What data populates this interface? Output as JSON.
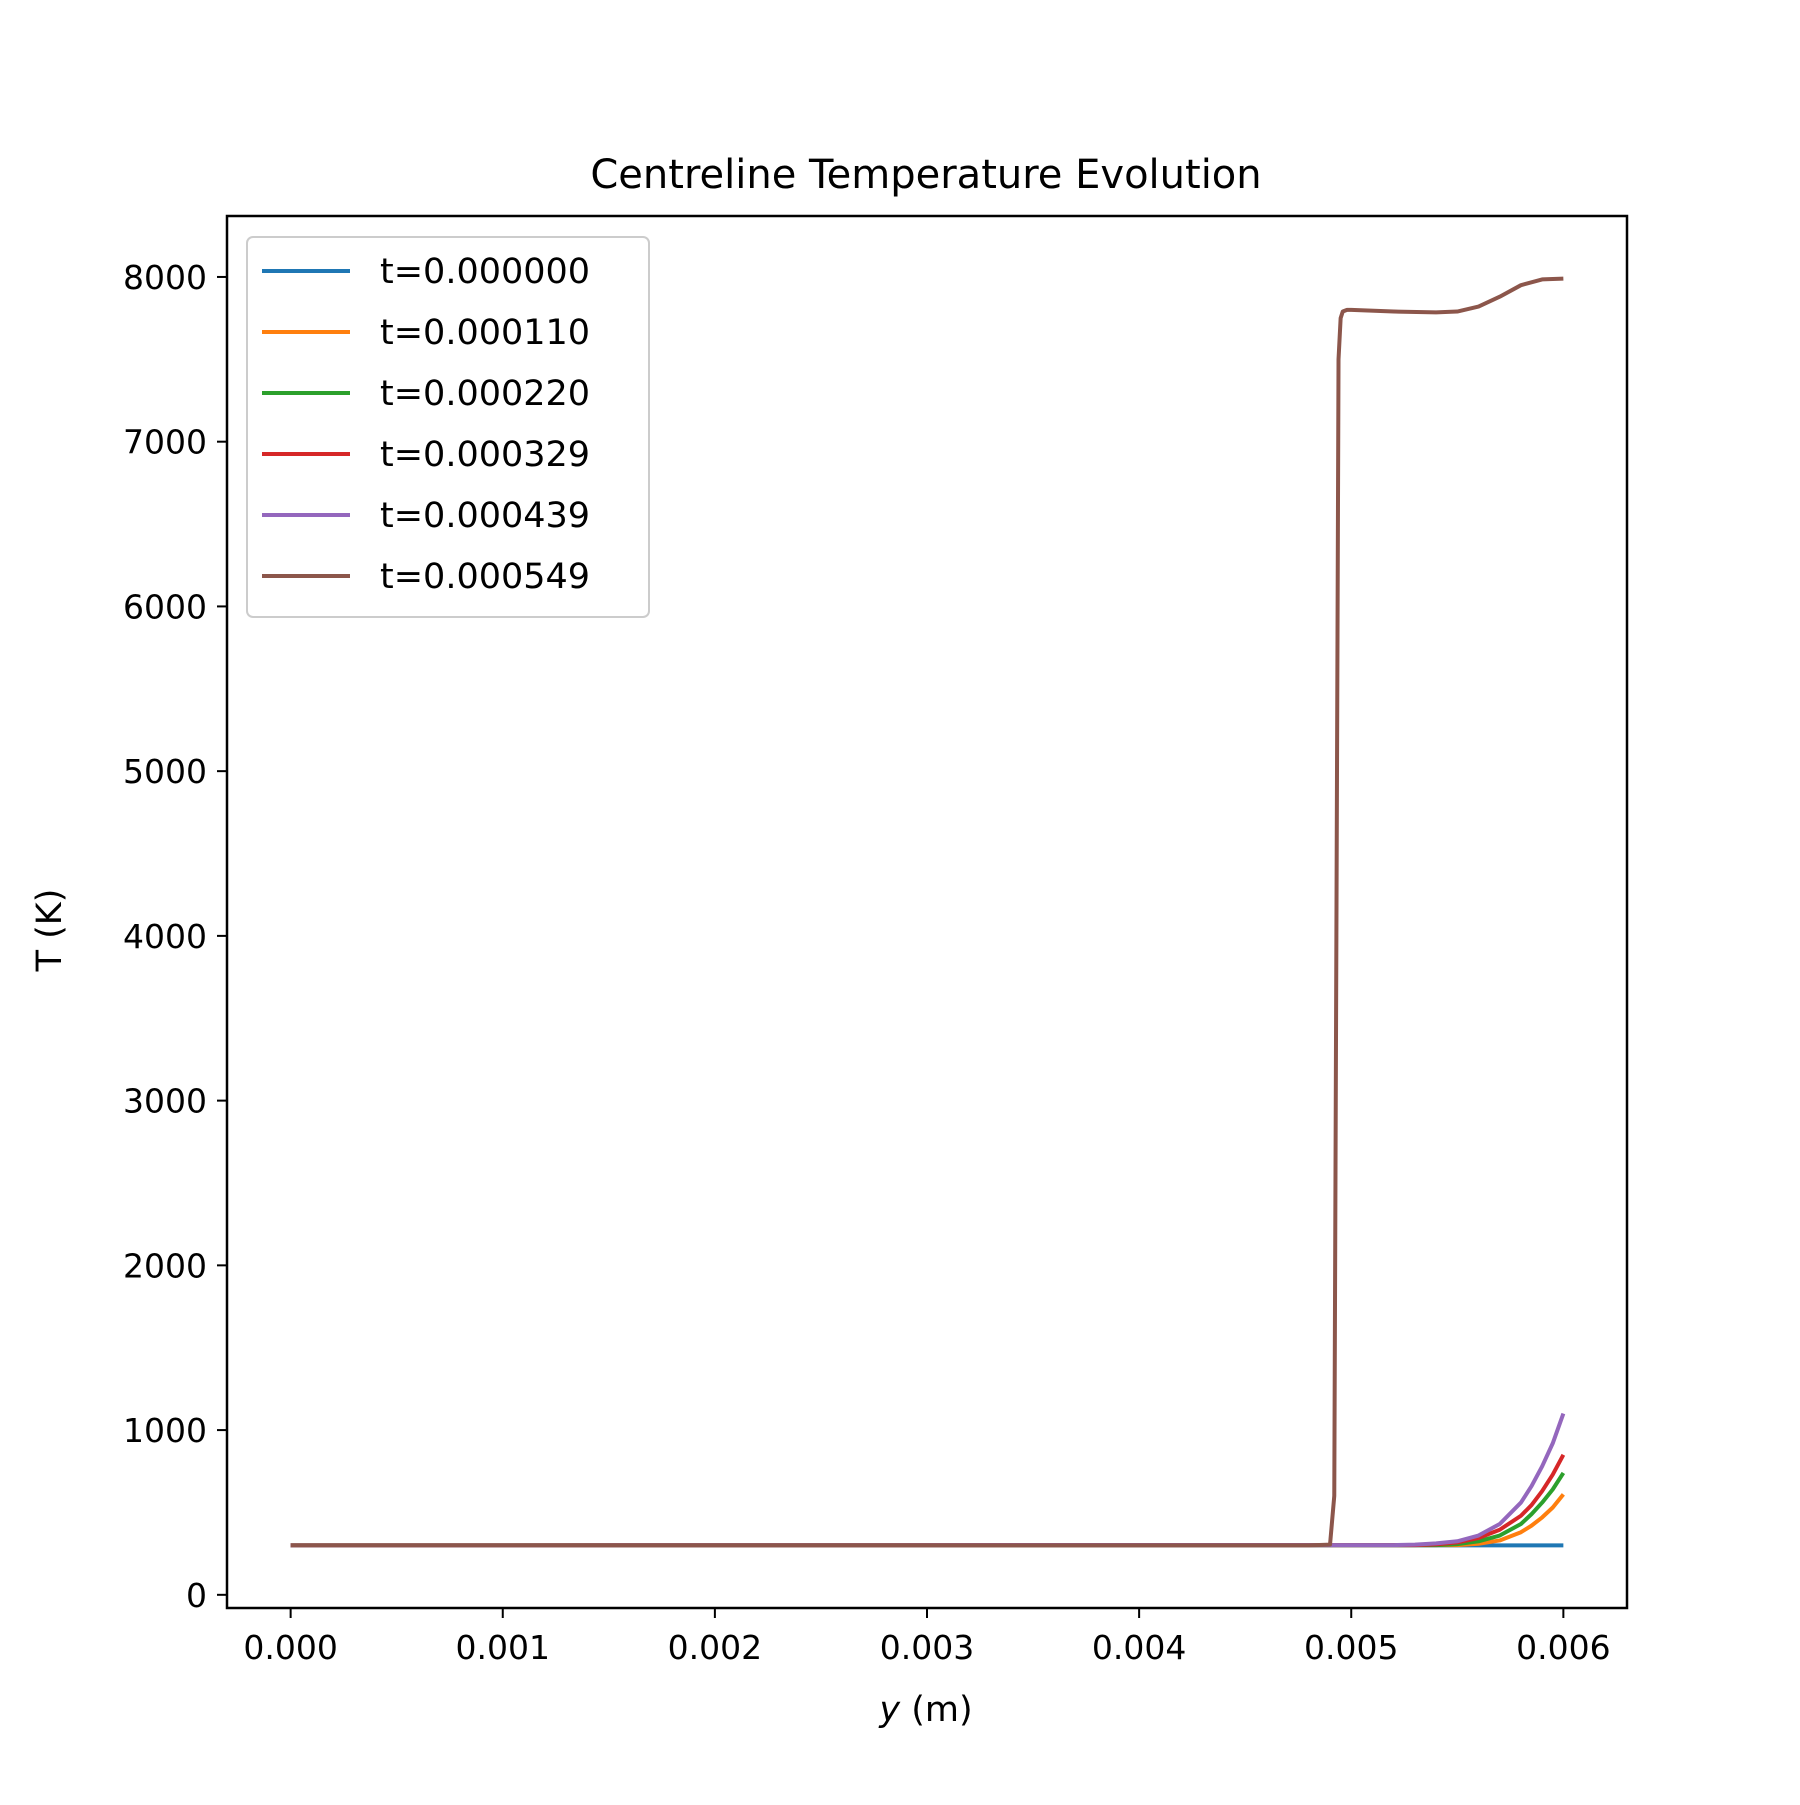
{
  "chart_data": {
    "type": "line",
    "title": "Centreline Temperature Evolution",
    "xlabel_var": "y",
    "xlabel_unit": " (m)",
    "ylabel": "T (K)",
    "xlim": [
      -0.0003,
      0.0063
    ],
    "ylim": [
      -80,
      8370
    ],
    "xticks": [
      0.0,
      0.001,
      0.002,
      0.003,
      0.004,
      0.005,
      0.006
    ],
    "xtick_labels": [
      "0.000",
      "0.001",
      "0.002",
      "0.003",
      "0.004",
      "0.005",
      "0.006"
    ],
    "yticks": [
      0,
      1000,
      2000,
      3000,
      4000,
      5000,
      6000,
      7000,
      8000
    ],
    "ytick_labels": [
      "0",
      "1000",
      "2000",
      "3000",
      "4000",
      "5000",
      "6000",
      "7000",
      "8000"
    ],
    "grid": false,
    "legend_position": "top-left",
    "series": [
      {
        "name": "t=0.000000",
        "color": "#1f77b4",
        "x": [
          0.0,
          0.006
        ],
        "y": [
          300,
          300
        ]
      },
      {
        "name": "t=0.000110",
        "color": "#ff7f0e",
        "x": [
          0.0,
          0.0055,
          0.0056,
          0.0057,
          0.0058,
          0.00585,
          0.0059,
          0.00595,
          0.006
        ],
        "y": [
          300,
          302,
          310,
          330,
          380,
          420,
          470,
          530,
          610
        ]
      },
      {
        "name": "t=0.000220",
        "color": "#2ca02c",
        "x": [
          0.0,
          0.0054,
          0.0055,
          0.0056,
          0.0057,
          0.0058,
          0.00585,
          0.0059,
          0.00595,
          0.006
        ],
        "y": [
          300,
          302,
          308,
          325,
          360,
          430,
          490,
          560,
          640,
          740
        ]
      },
      {
        "name": "t=0.000329",
        "color": "#d62728",
        "x": [
          0.0,
          0.0053,
          0.0054,
          0.0055,
          0.0056,
          0.0057,
          0.0058,
          0.00585,
          0.0059,
          0.00595,
          0.006
        ],
        "y": [
          300,
          302,
          306,
          318,
          345,
          395,
          480,
          545,
          630,
          730,
          850
        ]
      },
      {
        "name": "t=0.000439",
        "color": "#9467bd",
        "x": [
          0.0,
          0.0052,
          0.0053,
          0.0054,
          0.0055,
          0.0056,
          0.0057,
          0.0058,
          0.00585,
          0.0059,
          0.00595,
          0.006
        ],
        "y": [
          300,
          302,
          305,
          312,
          325,
          360,
          430,
          560,
          660,
          780,
          920,
          1100
        ]
      },
      {
        "name": "t=0.000549",
        "color": "#8c564b",
        "x": [
          0.0,
          0.0048,
          0.0049,
          0.00492,
          0.00493,
          0.00494,
          0.00495,
          0.00496,
          0.00498,
          0.005,
          0.0052,
          0.0054,
          0.0055,
          0.0056,
          0.0057,
          0.0058,
          0.0059,
          0.006
        ],
        "y": [
          300,
          300,
          305,
          600,
          4000,
          7500,
          7750,
          7790,
          7800,
          7800,
          7790,
          7785,
          7790,
          7820,
          7880,
          7950,
          7985,
          7990
        ]
      }
    ]
  }
}
